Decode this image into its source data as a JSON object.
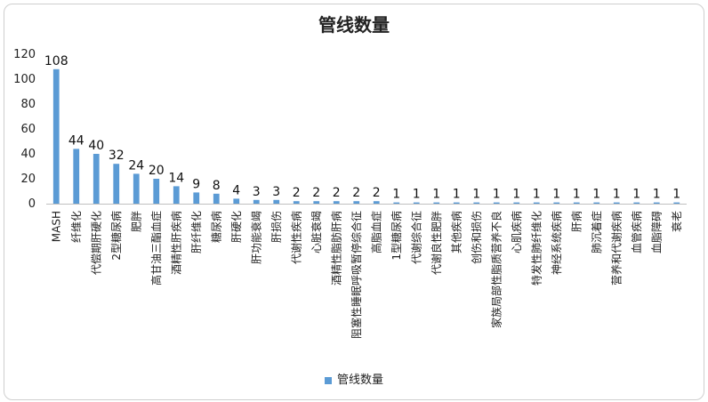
{
  "chart_data": {
    "type": "bar",
    "title": "管线数量",
    "xlabel": "",
    "ylabel": "",
    "ylim": [
      0,
      120
    ],
    "yticks": [
      0,
      20,
      40,
      60,
      80,
      100,
      120
    ],
    "categories": [
      "MASH",
      "纤维化",
      "代偿期肝硬化",
      "2型糖尿病",
      "肥胖",
      "高甘油三酯血症",
      "酒精性肝疾病",
      "肝纤维化",
      "糖尿病",
      "肝硬化",
      "肝功能衰竭",
      "肝损伤",
      "代谢性疾病",
      "心脏衰竭",
      "酒精性脂肪肝病",
      "阻塞性睡眠呼吸暂停综合征",
      "高脂血症",
      "1型糖尿病",
      "代谢综合征",
      "代谢良性肥胖",
      "其他疾病",
      "创伤和损伤",
      "家族局部性脂质营养不良",
      "心肌疾病",
      "特发性肺纤维化",
      "神经系统疾病",
      "肝病",
      "肺沉着症",
      "营养和代谢疾病",
      "血管疾病",
      "血脂障碍",
      "衰老"
    ],
    "series": [
      {
        "name": "管线数量",
        "values": [
          108,
          44,
          40,
          32,
          24,
          20,
          14,
          9,
          8,
          4,
          3,
          3,
          2,
          2,
          2,
          2,
          2,
          1,
          1,
          1,
          1,
          1,
          1,
          1,
          1,
          1,
          1,
          1,
          1,
          1,
          1,
          1
        ]
      }
    ],
    "legend": "bottom",
    "grid": false,
    "color": "#5b9bd5"
  }
}
